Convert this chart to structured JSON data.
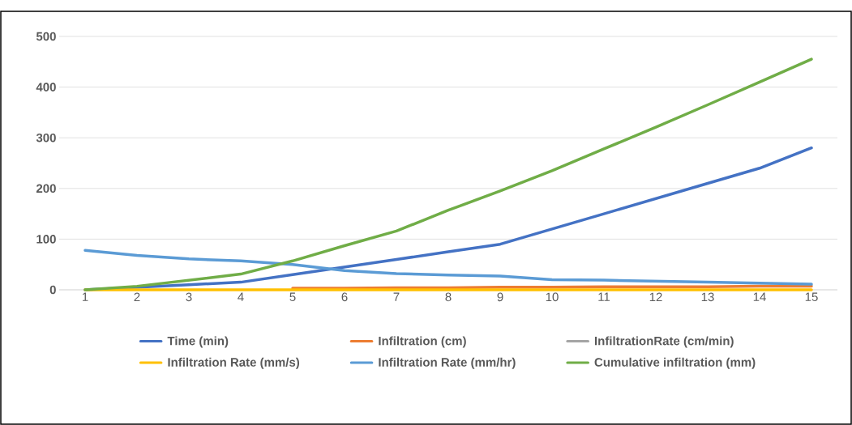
{
  "chart_data": {
    "type": "line",
    "categories": [
      "1",
      "2",
      "3",
      "4",
      "5",
      "6",
      "7",
      "8",
      "9",
      "10",
      "11",
      "12",
      "13",
      "14",
      "15"
    ],
    "series": [
      {
        "name": "Time (min)",
        "color": "#4472c4",
        "values": [
          0,
          5,
          10,
          15,
          30,
          45,
          60,
          75,
          90,
          120,
          150,
          180,
          210,
          240,
          280
        ]
      },
      {
        "name": "Infiltration (cm)",
        "color": "#ed7d31",
        "values": [
          null,
          null,
          null,
          null,
          3,
          3,
          4,
          4,
          5,
          5,
          6,
          6,
          6,
          7,
          7
        ]
      },
      {
        "name": "InfiltrationRate (cm/min)",
        "color": "#a5a5a5",
        "values": [
          null,
          null,
          null,
          null,
          null,
          null,
          null,
          null,
          null,
          null,
          null,
          null,
          null,
          null,
          null
        ]
      },
      {
        "name": "Infiltration Rate (mm/s)",
        "color": "#ffc000",
        "values": [
          0,
          0,
          0,
          0,
          0,
          0,
          0,
          0,
          0,
          0,
          0,
          0,
          0,
          0,
          0
        ]
      },
      {
        "name": "Infiltration Rate (mm/hr)",
        "color": "#5b9bd5",
        "values": [
          78,
          68,
          61,
          57,
          50,
          38,
          32,
          29,
          27,
          20,
          19,
          17,
          15,
          13,
          11
        ]
      },
      {
        "name": "Cumulative infiltration (mm)",
        "color": "#70ad47",
        "values": [
          0,
          7,
          19,
          31,
          57,
          87,
          116,
          157,
          195,
          235,
          278,
          321,
          365,
          410,
          455
        ]
      }
    ],
    "ylim": [
      0,
      500
    ],
    "yticks": [
      0,
      100,
      200,
      300,
      400,
      500
    ],
    "grid": "y",
    "legend": "bottom",
    "marker": "none",
    "line_style": "solid"
  }
}
